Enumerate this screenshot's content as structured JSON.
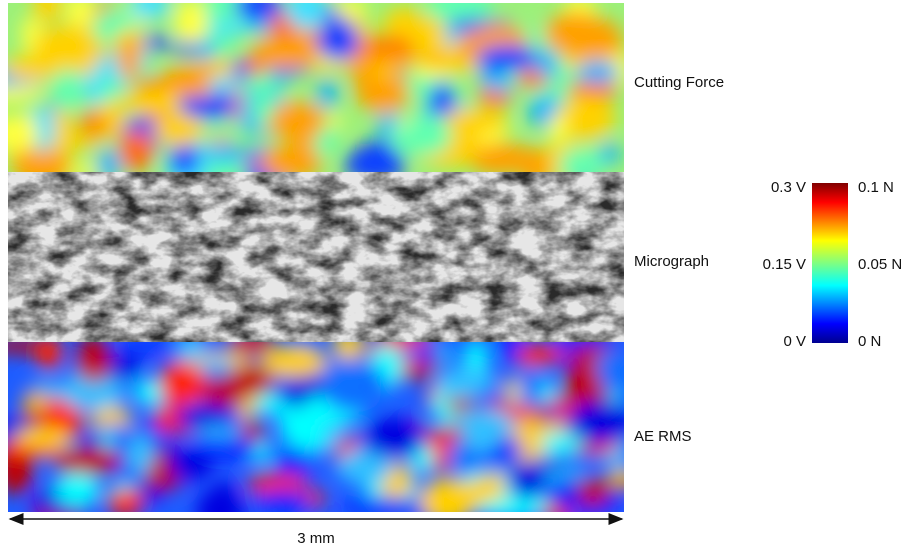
{
  "panels": [
    {
      "label": "Cutting Force"
    },
    {
      "label": "Micrograph"
    },
    {
      "label": "AE RMS"
    }
  ],
  "colorbar": {
    "left_labels": [
      "0.3 V",
      "0.15 V",
      "0 V"
    ],
    "right_labels": [
      "0.1 N",
      "0.05 N",
      "0 N"
    ]
  },
  "scale": {
    "label": "3 mm"
  }
}
